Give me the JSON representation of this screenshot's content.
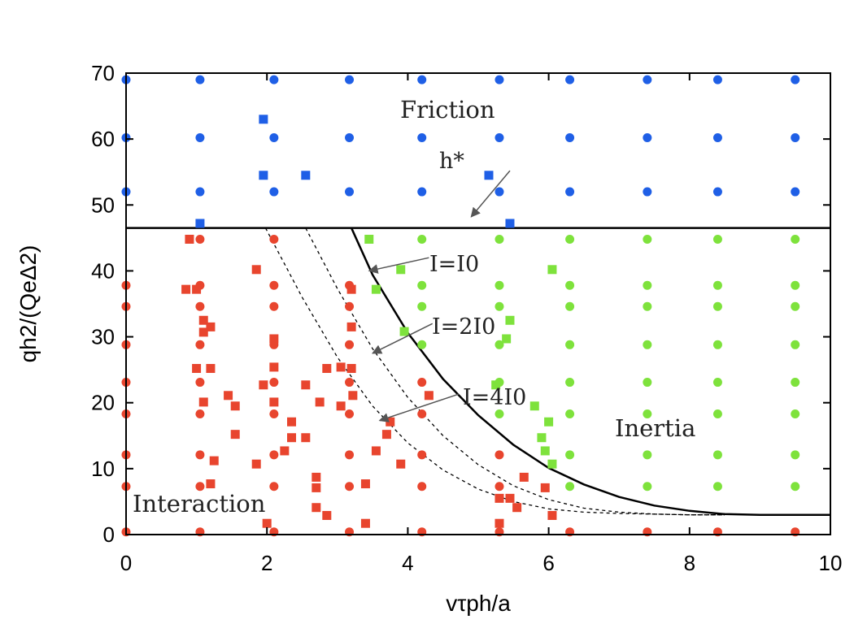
{
  "chart_data": {
    "type": "scatter",
    "xlabel": "vτph/a",
    "ylabel": "qh2/(QeΔ2)",
    "xlim": [
      0,
      10
    ],
    "ylim": [
      0,
      70
    ],
    "xticks": [
      "0",
      "2",
      "4",
      "6",
      "8",
      "10"
    ],
    "yticks": [
      "0",
      "10",
      "20",
      "30",
      "40",
      "50",
      "60",
      "70"
    ],
    "grid": false,
    "regions": {
      "friction": "Friction",
      "inertia": "Inertia",
      "interaction": "Interaction"
    },
    "annotations": {
      "h_star": "h*",
      "i0": "I=I0",
      "i2": "I=2I0",
      "i4": "I=4I0"
    },
    "boundary_h_star": 46.5,
    "curves": [
      {
        "name": "I=I0",
        "style": "solid",
        "points": [
          [
            3.2,
            46.5
          ],
          [
            3.5,
            39.4
          ],
          [
            4.0,
            30.6
          ],
          [
            4.5,
            23.6
          ],
          [
            5.0,
            18.1
          ],
          [
            5.5,
            13.6
          ],
          [
            6.0,
            10.1
          ],
          [
            6.5,
            7.6
          ],
          [
            7.0,
            5.7
          ],
          [
            7.5,
            4.4
          ],
          [
            8.0,
            3.6
          ],
          [
            8.5,
            3.1
          ],
          [
            9.0,
            3.0
          ],
          [
            10.0,
            3.0
          ]
        ]
      },
      {
        "name": "I=2I0",
        "style": "dashed",
        "points": [
          [
            2.55,
            46.5
          ],
          [
            3.0,
            37.3
          ],
          [
            3.5,
            28.2
          ],
          [
            4.0,
            20.8
          ],
          [
            4.5,
            15.0
          ],
          [
            5.0,
            10.6
          ],
          [
            5.5,
            7.4
          ],
          [
            6.0,
            5.3
          ],
          [
            6.5,
            4.0
          ],
          [
            7.0,
            3.4
          ],
          [
            7.5,
            3.1
          ],
          [
            8.0,
            3.0
          ],
          [
            8.5,
            3.0
          ]
        ]
      },
      {
        "name": "I=4I0",
        "style": "dashed",
        "points": [
          [
            1.98,
            46.5
          ],
          [
            2.5,
            36.0
          ],
          [
            3.0,
            26.9
          ],
          [
            3.5,
            19.5
          ],
          [
            4.0,
            13.9
          ],
          [
            4.5,
            9.8
          ],
          [
            5.0,
            6.9
          ],
          [
            5.5,
            5.0
          ],
          [
            6.0,
            3.9
          ],
          [
            6.5,
            3.4
          ],
          [
            7.0,
            3.2
          ],
          [
            7.5,
            3.1
          ],
          [
            8.0,
            3.0
          ],
          [
            8.5,
            3.0
          ]
        ]
      }
    ],
    "series": [
      {
        "name": "Friction circles",
        "marker": "circle",
        "color": "#1f5fe6",
        "points": [
          [
            0.0,
            69
          ],
          [
            1.05,
            69
          ],
          [
            2.1,
            69
          ],
          [
            3.17,
            69
          ],
          [
            4.2,
            69
          ],
          [
            5.3,
            69
          ],
          [
            6.3,
            69
          ],
          [
            7.4,
            69
          ],
          [
            8.4,
            69
          ],
          [
            9.5,
            69
          ],
          [
            0.0,
            60.2
          ],
          [
            1.05,
            60.2
          ],
          [
            2.1,
            60.2
          ],
          [
            3.17,
            60.2
          ],
          [
            4.2,
            60.2
          ],
          [
            5.3,
            60.2
          ],
          [
            6.3,
            60.2
          ],
          [
            7.4,
            60.2
          ],
          [
            8.4,
            60.2
          ],
          [
            9.5,
            60.2
          ],
          [
            0.0,
            52
          ],
          [
            1.05,
            52
          ],
          [
            2.1,
            52
          ],
          [
            3.17,
            52
          ],
          [
            4.2,
            52
          ],
          [
            5.3,
            52
          ],
          [
            6.3,
            52
          ],
          [
            7.4,
            52
          ],
          [
            8.4,
            52
          ],
          [
            9.5,
            52
          ]
        ]
      },
      {
        "name": "Friction squares",
        "marker": "square",
        "color": "#1f5fe6",
        "points": [
          [
            1.95,
            63
          ],
          [
            1.95,
            54.5
          ],
          [
            2.55,
            54.5
          ],
          [
            5.15,
            54.5
          ],
          [
            1.05,
            47.2
          ],
          [
            5.45,
            47.2
          ]
        ]
      },
      {
        "name": "Interaction circles",
        "marker": "circle",
        "color": "#e8452e",
        "points": [
          [
            0.0,
            37.8
          ],
          [
            0.0,
            34.6
          ],
          [
            0.0,
            28.8
          ],
          [
            0.0,
            23.1
          ],
          [
            0.0,
            18.3
          ],
          [
            0.0,
            12.1
          ],
          [
            0.0,
            7.3
          ],
          [
            0.0,
            0.4
          ],
          [
            1.05,
            44.8
          ],
          [
            1.05,
            37.8
          ],
          [
            1.05,
            34.6
          ],
          [
            1.05,
            28.8
          ],
          [
            1.05,
            23.1
          ],
          [
            1.05,
            18.3
          ],
          [
            1.05,
            12.1
          ],
          [
            1.05,
            7.3
          ],
          [
            1.05,
            0.4
          ],
          [
            2.1,
            44.8
          ],
          [
            2.1,
            37.8
          ],
          [
            2.1,
            34.6
          ],
          [
            2.1,
            28.8
          ],
          [
            2.1,
            23.1
          ],
          [
            2.1,
            18.3
          ],
          [
            2.1,
            12.1
          ],
          [
            2.1,
            7.3
          ],
          [
            2.1,
            0.4
          ],
          [
            3.17,
            37.8
          ],
          [
            3.17,
            34.6
          ],
          [
            3.17,
            28.8
          ],
          [
            3.17,
            23.1
          ],
          [
            3.17,
            18.3
          ],
          [
            3.17,
            12.1
          ],
          [
            3.17,
            7.3
          ],
          [
            3.17,
            0.4
          ],
          [
            4.2,
            23.1
          ],
          [
            4.2,
            18.3
          ],
          [
            4.2,
            12.1
          ],
          [
            4.2,
            7.3
          ],
          [
            4.2,
            0.4
          ],
          [
            5.3,
            12.1
          ],
          [
            5.3,
            7.3
          ],
          [
            5.3,
            0.4
          ],
          [
            6.3,
            0.4
          ],
          [
            7.4,
            0.4
          ],
          [
            8.4,
            0.4
          ],
          [
            9.5,
            0.4
          ]
        ]
      },
      {
        "name": "Interaction squares",
        "marker": "square",
        "color": "#e8452e",
        "points": [
          [
            0.9,
            44.8
          ],
          [
            0.85,
            37.2
          ],
          [
            1.0,
            37.2
          ],
          [
            1.1,
            32.5
          ],
          [
            1.2,
            31.5
          ],
          [
            1.1,
            30.7
          ],
          [
            1.0,
            25.2
          ],
          [
            1.2,
            25.2
          ],
          [
            1.1,
            20.1
          ],
          [
            1.25,
            11.2
          ],
          [
            1.2,
            7.7
          ],
          [
            1.85,
            40.2
          ],
          [
            2.1,
            29.7
          ],
          [
            2.1,
            25.4
          ],
          [
            1.95,
            22.7
          ],
          [
            2.1,
            20.1
          ],
          [
            2.25,
            12.7
          ],
          [
            2.35,
            17.1
          ],
          [
            2.35,
            14.7
          ],
          [
            2.55,
            22.7
          ],
          [
            2.55,
            14.7
          ],
          [
            1.85,
            10.7
          ],
          [
            2.0,
            1.7
          ],
          [
            2.75,
            20.1
          ],
          [
            2.7,
            8.7
          ],
          [
            2.7,
            7.1
          ],
          [
            2.7,
            4.1
          ],
          [
            2.85,
            25.2
          ],
          [
            2.85,
            2.9
          ],
          [
            3.05,
            25.4
          ],
          [
            3.05,
            19.5
          ],
          [
            3.2,
            31.5
          ],
          [
            3.2,
            25.2
          ],
          [
            3.2,
            37.2
          ],
          [
            3.22,
            21.1
          ],
          [
            3.4,
            7.7
          ],
          [
            3.4,
            1.7
          ],
          [
            1.45,
            21.1
          ],
          [
            1.55,
            19.5
          ],
          [
            1.55,
            15.2
          ],
          [
            3.55,
            12.7
          ],
          [
            3.7,
            15.2
          ],
          [
            3.75,
            17.1
          ],
          [
            3.9,
            10.7
          ],
          [
            4.3,
            21.1
          ],
          [
            5.3,
            5.5
          ],
          [
            5.3,
            1.7
          ],
          [
            5.45,
            5.5
          ],
          [
            5.55,
            4.1
          ],
          [
            5.65,
            8.7
          ],
          [
            5.95,
            7.1
          ],
          [
            6.05,
            2.9
          ]
        ]
      },
      {
        "name": "Inertia circles",
        "marker": "circle",
        "color": "#7ee23c",
        "points": [
          [
            4.2,
            44.8
          ],
          [
            4.2,
            37.8
          ],
          [
            4.2,
            34.6
          ],
          [
            4.2,
            28.8
          ],
          [
            5.3,
            44.8
          ],
          [
            5.3,
            37.8
          ],
          [
            5.3,
            34.6
          ],
          [
            5.3,
            28.8
          ],
          [
            5.3,
            23.1
          ],
          [
            5.3,
            18.3
          ],
          [
            6.3,
            44.8
          ],
          [
            6.3,
            37.8
          ],
          [
            6.3,
            34.6
          ],
          [
            6.3,
            28.8
          ],
          [
            6.3,
            23.1
          ],
          [
            6.3,
            18.3
          ],
          [
            6.3,
            12.1
          ],
          [
            6.3,
            7.3
          ],
          [
            7.4,
            44.8
          ],
          [
            7.4,
            37.8
          ],
          [
            7.4,
            34.6
          ],
          [
            7.4,
            28.8
          ],
          [
            7.4,
            23.1
          ],
          [
            7.4,
            18.3
          ],
          [
            7.4,
            12.1
          ],
          [
            7.4,
            7.3
          ],
          [
            8.4,
            44.8
          ],
          [
            8.4,
            37.8
          ],
          [
            8.4,
            34.6
          ],
          [
            8.4,
            28.8
          ],
          [
            8.4,
            23.1
          ],
          [
            8.4,
            18.3
          ],
          [
            8.4,
            12.1
          ],
          [
            8.4,
            7.3
          ],
          [
            9.5,
            44.8
          ],
          [
            9.5,
            37.8
          ],
          [
            9.5,
            34.6
          ],
          [
            9.5,
            28.8
          ],
          [
            9.5,
            23.1
          ],
          [
            9.5,
            18.3
          ],
          [
            9.5,
            12.1
          ],
          [
            9.5,
            7.3
          ]
        ]
      },
      {
        "name": "Inertia squares",
        "marker": "square",
        "color": "#7ee23c",
        "points": [
          [
            3.45,
            44.8
          ],
          [
            3.55,
            37.2
          ],
          [
            3.9,
            40.2
          ],
          [
            3.95,
            30.8
          ],
          [
            5.4,
            29.7
          ],
          [
            5.45,
            32.5
          ],
          [
            5.25,
            22.7
          ],
          [
            5.8,
            19.5
          ],
          [
            5.9,
            14.7
          ],
          [
            5.95,
            12.7
          ],
          [
            6.0,
            17.1
          ],
          [
            6.05,
            10.7
          ],
          [
            6.05,
            40.2
          ]
        ]
      }
    ]
  }
}
